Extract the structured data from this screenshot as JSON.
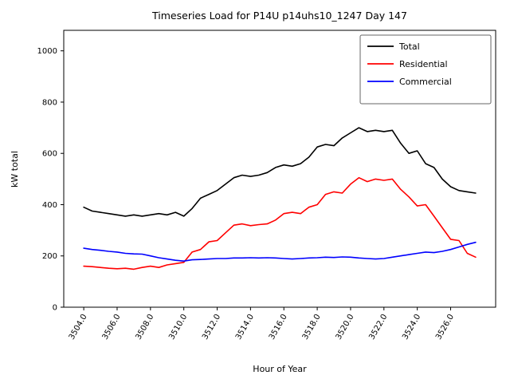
{
  "chart_data": {
    "type": "line",
    "title": "Timeseries Load for P14U p14uhs10_1247  Day 147",
    "xlabel": "Hour of Year",
    "ylabel": "kW total",
    "xlim": [
      3502.8,
      3528.7
    ],
    "ylim": [
      0,
      1080
    ],
    "yticks": [
      0,
      200,
      400,
      600,
      800,
      1000
    ],
    "xticks": {
      "values": [
        3504,
        3506,
        3508,
        3510,
        3512,
        3514,
        3516,
        3518,
        3520,
        3522,
        3524,
        3526
      ],
      "labels": [
        "3504.0",
        "3506.0",
        "3508.0",
        "3510.0",
        "3512.0",
        "3514.0",
        "3516.0",
        "3518.0",
        "3520.0",
        "3522.0",
        "3524.0",
        "3526.0"
      ]
    },
    "grid": false,
    "legend_position": "upper right",
    "x": [
      3504.0,
      3504.5,
      3505.0,
      3505.5,
      3506.0,
      3506.5,
      3507.0,
      3507.5,
      3508.0,
      3508.5,
      3509.0,
      3509.5,
      3510.0,
      3510.5,
      3511.0,
      3511.5,
      3512.0,
      3512.5,
      3513.0,
      3513.5,
      3514.0,
      3514.5,
      3515.0,
      3515.5,
      3516.0,
      3516.5,
      3517.0,
      3517.5,
      3518.0,
      3518.5,
      3519.0,
      3519.5,
      3520.0,
      3520.5,
      3521.0,
      3521.5,
      3522.0,
      3522.5,
      3523.0,
      3523.5,
      3524.0,
      3524.5,
      3525.0,
      3525.5,
      3526.0,
      3526.5,
      3527.0,
      3527.5
    ],
    "series": [
      {
        "name": "Total",
        "color": "#000000",
        "values": [
          390,
          375,
          370,
          365,
          360,
          355,
          360,
          355,
          360,
          365,
          360,
          370,
          355,
          385,
          425,
          440,
          455,
          480,
          505,
          515,
          510,
          515,
          525,
          545,
          555,
          550,
          560,
          585,
          625,
          635,
          630,
          660,
          680,
          700,
          685,
          690,
          685,
          690,
          640,
          600,
          610,
          560,
          545,
          500,
          470,
          455,
          450,
          445
        ]
      },
      {
        "name": "Residential",
        "color": "#ff0000",
        "values": [
          160,
          158,
          155,
          152,
          150,
          152,
          148,
          155,
          160,
          155,
          165,
          170,
          175,
          215,
          225,
          255,
          260,
          290,
          320,
          325,
          318,
          322,
          325,
          340,
          365,
          370,
          365,
          390,
          400,
          440,
          450,
          445,
          480,
          505,
          490,
          500,
          495,
          500,
          460,
          430,
          395,
          400,
          355,
          310,
          265,
          260,
          210,
          195
        ]
      },
      {
        "name": "Commercial",
        "color": "#0000ff",
        "values": [
          230,
          225,
          222,
          218,
          215,
          210,
          208,
          207,
          200,
          193,
          188,
          183,
          180,
          185,
          186,
          188,
          190,
          190,
          192,
          192,
          193,
          192,
          193,
          192,
          190,
          188,
          190,
          192,
          193,
          195,
          194,
          196,
          195,
          192,
          190,
          188,
          190,
          195,
          200,
          205,
          210,
          215,
          213,
          218,
          225,
          235,
          245,
          253
        ]
      }
    ]
  }
}
